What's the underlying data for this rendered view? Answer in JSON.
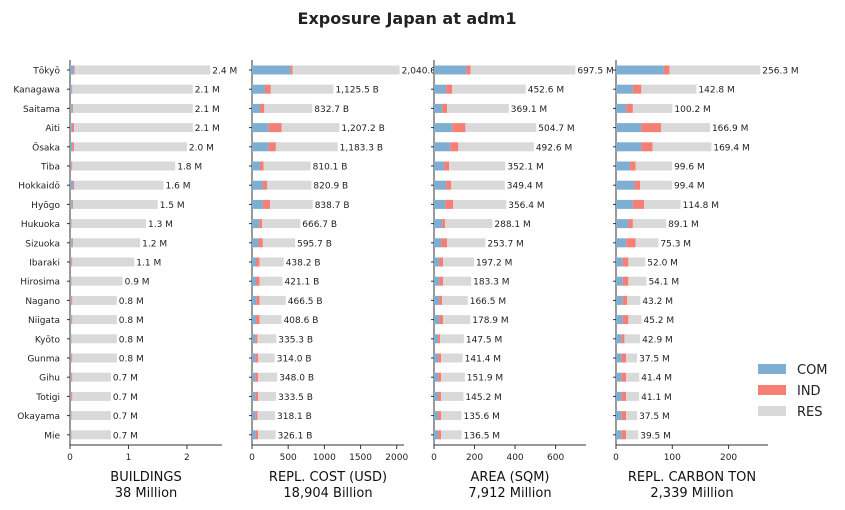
{
  "title": "Exposure Japan at adm1",
  "colors": {
    "COM": "#7eaed1",
    "IND": "#f57f74",
    "RES": "#d9d9d9"
  },
  "legend": [
    "COM",
    "IND",
    "RES"
  ],
  "categories": [
    "Tōkyō",
    "Kanagawa",
    "Saitama",
    "Aiti",
    "Ōsaka",
    "Tiba",
    "Hokkaidō",
    "Hyōgo",
    "Hukuoka",
    "Sizuoka",
    "Ibaraki",
    "Hirosima",
    "Nagano",
    "Niigata",
    "Kyōto",
    "Gunma",
    "Gihu",
    "Totigi",
    "Okayama",
    "Mie"
  ],
  "chart_data": [
    {
      "type": "bar",
      "xlabel": "BUILDINGS",
      "total": "38 Million",
      "xlim": [
        0,
        2.6
      ],
      "xticks": [
        0,
        1,
        2
      ],
      "labels": [
        "2.4 M",
        "2.1 M",
        "2.1 M",
        "2.1 M",
        "2.0 M",
        "1.8 M",
        "1.6 M",
        "1.5 M",
        "1.3 M",
        "1.2 M",
        "1.1 M",
        "0.9 M",
        "0.8 M",
        "0.8 M",
        "0.8 M",
        "0.8 M",
        "0.7 M",
        "0.7 M",
        "0.7 M",
        "0.7 M"
      ],
      "series": [
        {
          "name": "COM",
          "values": [
            0.06,
            0.03,
            0.03,
            0.03,
            0.04,
            0.02,
            0.05,
            0.03,
            0.02,
            0.03,
            0.02,
            0.02,
            0.02,
            0.02,
            0.02,
            0.02,
            0.02,
            0.02,
            0.02,
            0.02
          ]
        },
        {
          "name": "IND",
          "values": [
            0.02,
            0.01,
            0.02,
            0.04,
            0.03,
            0.02,
            0.02,
            0.02,
            0.01,
            0.02,
            0.02,
            0.01,
            0.02,
            0.02,
            0.01,
            0.02,
            0.02,
            0.02,
            0.01,
            0.01
          ]
        },
        {
          "name": "RES",
          "values": [
            2.32,
            2.06,
            2.05,
            2.03,
            1.93,
            1.76,
            1.53,
            1.45,
            1.27,
            1.15,
            1.06,
            0.87,
            0.76,
            0.76,
            0.77,
            0.76,
            0.66,
            0.66,
            0.67,
            0.67
          ]
        }
      ]
    },
    {
      "type": "bar",
      "xlabel": "REPL. COST (USD)",
      "total": "18,904 Billion",
      "xlim": [
        0,
        2100
      ],
      "xticks": [
        0,
        500,
        1000,
        1500,
        2000
      ],
      "labels": [
        "2,040.0 B",
        "1,125.5 B",
        "832.7 B",
        "1,207.2 B",
        "1,183.3 B",
        "810.1 B",
        "820.9 B",
        "838.7 B",
        "666.7 B",
        "595.7 B",
        "438.2 B",
        "421.1 B",
        "466.5 B",
        "408.6 B",
        "335.3 B",
        "314.0 B",
        "348.0 B",
        "333.5 B",
        "318.1 B",
        "326.1 B"
      ],
      "series": [
        {
          "name": "COM",
          "values": [
            530,
            180,
            110,
            230,
            230,
            110,
            150,
            150,
            100,
            90,
            55,
            55,
            60,
            55,
            45,
            45,
            45,
            45,
            45,
            50
          ]
        },
        {
          "name": "IND",
          "values": [
            30,
            80,
            60,
            180,
            100,
            50,
            60,
            100,
            40,
            60,
            50,
            50,
            45,
            50,
            30,
            40,
            40,
            40,
            30,
            35
          ]
        },
        {
          "name": "RES",
          "values": [
            1480,
            865.5,
            662.7,
            797.2,
            853.3,
            650.1,
            610.9,
            588.7,
            526.7,
            445.7,
            333.2,
            316.1,
            361.5,
            303.6,
            260.3,
            229,
            263,
            248.5,
            243.1,
            241.1
          ]
        }
      ]
    },
    {
      "type": "bar",
      "xlabel": "AREA (SQM)",
      "total": "7,912 Million",
      "xlim": [
        0,
        750
      ],
      "xticks": [
        0,
        200,
        400,
        600
      ],
      "labels": [
        "697.5 M",
        "452.6 M",
        "369.1 M",
        "504.7 M",
        "492.6 M",
        "352.1 M",
        "349.4 M",
        "356.4 M",
        "288.1 M",
        "253.7 M",
        "197.2 M",
        "183.3 M",
        "166.5 M",
        "178.9 M",
        "147.5 M",
        "141.4 M",
        "151.9 M",
        "145.2 M",
        "135.6 M",
        "136.5 M"
      ],
      "series": [
        {
          "name": "COM",
          "values": [
            160,
            60,
            40,
            90,
            80,
            50,
            60,
            55,
            40,
            35,
            25,
            25,
            25,
            25,
            20,
            20,
            20,
            20,
            20,
            20
          ]
        },
        {
          "name": "IND",
          "values": [
            20,
            30,
            25,
            65,
            40,
            25,
            25,
            40,
            15,
            30,
            20,
            20,
            15,
            20,
            10,
            15,
            15,
            15,
            15,
            15
          ]
        },
        {
          "name": "RES",
          "values": [
            517.5,
            362.6,
            304.1,
            349.7,
            372.6,
            277.1,
            264.4,
            261.4,
            233.1,
            188.7,
            152.2,
            138.3,
            126.5,
            133.9,
            117.5,
            106.4,
            116.9,
            110.2,
            100.6,
            101.5
          ]
        }
      ]
    },
    {
      "type": "bar",
      "xlabel": "REPL. CARBON TON",
      "total": "2,339 Million",
      "xlim": [
        0,
        270
      ],
      "xticks": [
        0,
        100,
        200
      ],
      "labels": [
        "256.3 M",
        "142.8 M",
        "100.2 M",
        "166.9 M",
        "169.4 M",
        "99.6 M",
        "99.4 M",
        "114.8 M",
        "89.1 M",
        "75.3 M",
        "52.0 M",
        "54.1 M",
        "43.2 M",
        "45.2 M",
        "42.9 M",
        "37.5 M",
        "41.4 M",
        "41.1 M",
        "37.5 M",
        "39.5 M"
      ],
      "series": [
        {
          "name": "COM",
          "values": [
            85,
            30,
            18,
            45,
            45,
            25,
            33,
            30,
            22,
            18,
            12,
            12,
            12,
            12,
            10,
            10,
            10,
            10,
            10,
            10
          ]
        },
        {
          "name": "IND",
          "values": [
            10,
            15,
            12,
            35,
            20,
            10,
            10,
            20,
            8,
            17,
            10,
            10,
            8,
            10,
            5,
            8,
            8,
            8,
            8,
            8
          ]
        },
        {
          "name": "RES",
          "values": [
            161.3,
            97.8,
            70.2,
            86.9,
            104.4,
            64.6,
            56.4,
            64.8,
            59.1,
            40.3,
            30,
            32.1,
            23.2,
            23.2,
            27.9,
            19.5,
            23.4,
            23.1,
            19.5,
            21.5
          ]
        }
      ]
    }
  ]
}
